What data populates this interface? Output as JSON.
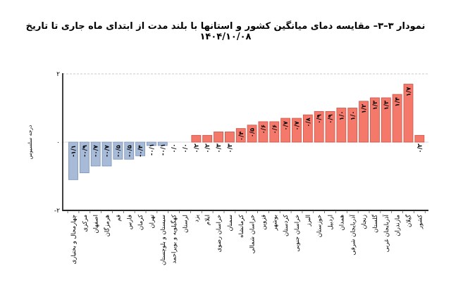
{
  "chart_data": {
    "type": "bar",
    "title": "نمودار ۳–۳– مقایسه دمای میانگین کشور و استانها با بلند مدت از ابتدای ماه جاری تا تاریخ ۱۴۰۴/۱۰/۰۸",
    "xlabel": "",
    "ylabel": "درجه سلسیوس",
    "ylim": [
      -2,
      2
    ],
    "yticks": [
      -2,
      0,
      2
    ],
    "ytick_labels": [
      "-۲",
      "۰",
      "۲"
    ],
    "grid": "dashed line at top only",
    "legend": "none",
    "colors": {
      "negative": "#a7bbd8",
      "negative_border": "#7d92b5",
      "positive": "#f5796b",
      "positive_border": "#c9564a"
    },
    "categories": [
      "چهارمحال و بختیاری",
      "مرکزی",
      "اصفهان",
      "هرمزگان",
      "قم",
      "فارس",
      "کرمان",
      "تهران",
      "سیستان و بلوچستان",
      "کهگیلویه و بویراحمد",
      "لرستان",
      "یزد",
      "ایلام",
      "خراسان رضوی",
      "سمنان",
      "کرمانشاه",
      "خراسان شمالی",
      "قزوین",
      "بوشهر",
      "کردستان",
      "خراسان جنوبی",
      "البرز",
      "خوزستان",
      "اردبیل",
      "همدان",
      "آذربایجان شرقی",
      "زنجان",
      "گلستان",
      "آذربایجان غربی",
      "مازندران",
      "گیلان",
      "کشور"
    ],
    "values": [
      -1.1,
      -0.9,
      -0.7,
      -0.7,
      -0.5,
      -0.5,
      -0.4,
      -0.1,
      -0.1,
      0.0,
      0.0,
      0.2,
      0.2,
      0.3,
      0.3,
      0.4,
      0.5,
      0.6,
      0.6,
      0.7,
      0.7,
      0.8,
      0.9,
      0.9,
      1.0,
      1.0,
      1.2,
      1.3,
      1.3,
      1.4,
      1.7,
      0.2
    ],
    "data_labels": [
      "-۱/۱",
      "-۰/۹",
      "-۰/۷",
      "-۰/۷",
      "-۰/۵",
      "-۰/۵",
      "-۰/۴",
      "-۰/۱",
      "-۰/۱",
      "۰/۰",
      "۰/۰",
      "۰/۲",
      "۰/۲",
      "۰/۳",
      "۰/۳",
      "۰/۴",
      "۰/۵",
      "۰/۶",
      "۰/۶",
      "۰/۷",
      "۰/۷",
      "۰/۸",
      "۰/۹",
      "۰/۹",
      "۱/۰",
      "۱/۰",
      "۱/۲",
      "۱/۳",
      "۱/۳",
      "۱/۴",
      "۱/۷",
      "۰/۲"
    ]
  }
}
